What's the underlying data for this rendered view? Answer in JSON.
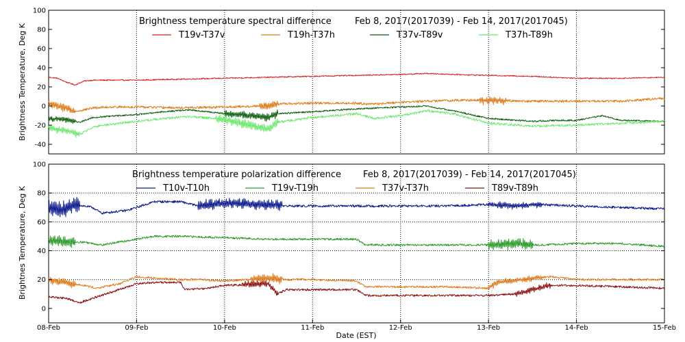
{
  "chart_data": [
    {
      "type": "line",
      "title_left": "Brightness temperature spectral difference",
      "title_right": "Feb  8, 2017(2017039) - Feb 14, 2017(2017045)",
      "ylabel": "Brightness Temperature, Deg K",
      "ylim": [
        -50,
        100
      ],
      "yticks": [
        -40,
        -20,
        0,
        20,
        40,
        60,
        80,
        100
      ],
      "ytick_labels": [
        "-40",
        "-20",
        "0",
        "20",
        "40",
        "60",
        "80",
        "100"
      ],
      "xlim": [
        0,
        7
      ],
      "xgrid": [
        1,
        2,
        3,
        4,
        5,
        6
      ],
      "ygrid": [],
      "series": [
        {
          "name": "T19v-T37v",
          "color": "#d42020",
          "noise": 0.6,
          "x": [
            0,
            0.1,
            0.2,
            0.3,
            0.4,
            0.5,
            0.7,
            1.0,
            1.5,
            2.0,
            2.5,
            3.0,
            3.5,
            4.0,
            4.3,
            4.6,
            5.0,
            5.5,
            6.0,
            6.5,
            7.0
          ],
          "y": [
            30,
            29,
            25,
            22,
            26,
            27,
            27,
            27,
            28,
            29,
            30,
            31,
            32,
            33,
            34,
            33,
            32,
            31,
            29,
            29,
            30
          ],
          "bursts": []
        },
        {
          "name": "T19h-T37h",
          "color": "#e07a18",
          "noise": 1.2,
          "x": [
            0,
            0.1,
            0.2,
            0.3,
            0.5,
            0.7,
            1.0,
            1.5,
            2.0,
            2.5,
            2.6,
            3.0,
            3.5,
            3.7,
            4.0,
            4.3,
            4.6,
            5.0,
            5.5,
            6.0,
            6.5,
            7.0
          ],
          "y": [
            3,
            0,
            -2,
            -6,
            -2,
            -1,
            -1,
            -2,
            -1,
            0,
            2,
            3,
            3,
            2,
            4,
            5,
            6,
            6,
            5,
            5,
            5,
            8
          ],
          "bursts": [
            [
              0,
              0.3,
              4
            ],
            [
              2.4,
              2.6,
              5
            ],
            [
              4.9,
              5.2,
              4
            ]
          ]
        },
        {
          "name": "T37v-T89v",
          "color": "#0e5c0e",
          "noise": 0.8,
          "x": [
            0,
            0.2,
            0.35,
            0.5,
            0.8,
            1.0,
            1.3,
            1.6,
            2.0,
            2.3,
            2.5,
            2.6,
            3.0,
            3.5,
            4.0,
            4.3,
            4.6,
            5.0,
            5.5,
            5.8,
            6.0,
            6.3,
            6.5,
            7.0
          ],
          "y": [
            -13,
            -14,
            -17,
            -12,
            -10,
            -9,
            -6,
            -4,
            -8,
            -10,
            -12,
            -8,
            -6,
            -3,
            -1,
            0,
            -5,
            -13,
            -16,
            -15,
            -15,
            -10,
            -15,
            -16
          ],
          "bursts": [
            [
              0,
              0.3,
              3
            ],
            [
              2.0,
              2.6,
              4
            ]
          ]
        },
        {
          "name": "T37h-T89h",
          "color": "#6fe86f",
          "noise": 1.2,
          "x": [
            0,
            0.2,
            0.35,
            0.5,
            0.8,
            1.0,
            1.3,
            1.6,
            2.0,
            2.3,
            2.5,
            2.6,
            3.0,
            3.5,
            3.7,
            4.0,
            4.3,
            4.6,
            5.0,
            5.5,
            6.0,
            6.5,
            7.0
          ],
          "y": [
            -23,
            -25,
            -30,
            -22,
            -18,
            -16,
            -13,
            -11,
            -14,
            -20,
            -24,
            -17,
            -12,
            -8,
            -13,
            -10,
            -5,
            -8,
            -18,
            -21,
            -20,
            -18,
            -16
          ],
          "bursts": [
            [
              0,
              0.35,
              4
            ],
            [
              1.9,
              2.6,
              5
            ]
          ]
        }
      ]
    },
    {
      "type": "line",
      "title_left": "Brightness temperature polarization difference",
      "title_right": "Feb  8, 2017(2017039) - Feb 14, 2017(2017045)",
      "ylabel": "Brightnes Temperature, Deg K",
      "xlabel": "Date (EST)",
      "ylim": [
        -10,
        100
      ],
      "yticks": [
        0,
        20,
        40,
        60,
        80,
        100
      ],
      "ytick_labels": [
        "0",
        "20",
        "40",
        "60",
        "80",
        "100"
      ],
      "xlim": [
        0,
        7
      ],
      "xticks": [
        0,
        1,
        2,
        3,
        4,
        5,
        6,
        7
      ],
      "xtick_labels": [
        "08-Feb",
        "09-Feb",
        "10-Feb",
        "11-Feb",
        "12-Feb",
        "13-Feb",
        "14-Feb",
        "15-Feb"
      ],
      "xgrid": [
        1,
        2,
        3,
        4,
        5,
        6
      ],
      "ygrid": [
        20,
        40,
        60,
        80
      ],
      "series": [
        {
          "name": "T10v-T10h",
          "color": "#0a1a8c",
          "noise": 0.8,
          "x": [
            0,
            0.15,
            0.3,
            0.5,
            0.6,
            0.9,
            1.0,
            1.2,
            1.5,
            1.7,
            2.0,
            2.5,
            2.7,
            3.0,
            3.5,
            4.0,
            4.5,
            5.0,
            5.3,
            5.6,
            6.0,
            6.5,
            7.0
          ],
          "y": [
            70,
            68,
            72,
            70,
            66,
            68,
            70,
            74,
            74,
            71,
            73,
            72,
            71,
            71,
            71,
            71,
            71,
            72,
            71,
            72,
            71,
            70,
            69
          ],
          "bursts": [
            [
              0,
              0.35,
              6
            ],
            [
              1.7,
              2.65,
              4
            ],
            [
              5.0,
              5.6,
              2
            ]
          ]
        },
        {
          "name": "T19v-T19h",
          "color": "#2a9a2a",
          "noise": 0.7,
          "x": [
            0,
            0.2,
            0.4,
            0.6,
            0.8,
            1.0,
            1.2,
            1.5,
            2.0,
            2.5,
            2.7,
            3.0,
            3.5,
            3.6,
            4.0,
            4.5,
            5.0,
            5.3,
            5.6,
            6.0,
            6.5,
            7.0
          ],
          "y": [
            47,
            46,
            46,
            44,
            46,
            48,
            50,
            50,
            49,
            48,
            48,
            48,
            48,
            44,
            44,
            44,
            44,
            45,
            44,
            45,
            45,
            43
          ],
          "bursts": [
            [
              0,
              0.3,
              4
            ],
            [
              5.0,
              5.5,
              4
            ]
          ]
        },
        {
          "name": "T37v-T37h",
          "color": "#e07a18",
          "noise": 0.7,
          "x": [
            0,
            0.2,
            0.4,
            0.55,
            0.8,
            1.0,
            1.2,
            1.5,
            1.7,
            2.0,
            2.5,
            2.7,
            3.0,
            3.5,
            3.6,
            4.0,
            4.5,
            5.0,
            5.1,
            5.5,
            5.7,
            6.0,
            6.5,
            7.0
          ],
          "y": [
            20,
            18,
            16,
            14,
            17,
            22,
            21,
            20,
            20,
            19,
            21,
            20,
            20,
            19,
            15,
            15,
            15,
            14,
            18,
            21,
            22,
            20,
            20,
            20
          ],
          "bursts": [
            [
              0,
              0.3,
              3
            ],
            [
              2.3,
              2.65,
              3
            ],
            [
              5.0,
              5.6,
              2
            ]
          ]
        },
        {
          "name": "T89v-T89h",
          "color": "#8c1010",
          "noise": 0.7,
          "x": [
            0,
            0.2,
            0.35,
            0.5,
            0.7,
            1.0,
            1.2,
            1.5,
            1.55,
            1.8,
            2.0,
            2.5,
            2.6,
            2.7,
            3.0,
            3.5,
            3.6,
            4.0,
            4.5,
            5.0,
            5.3,
            5.5,
            5.7,
            6.0,
            6.5,
            7.0
          ],
          "y": [
            8,
            7,
            4,
            7,
            11,
            17,
            18,
            18,
            13,
            14,
            16,
            17,
            10,
            13,
            13,
            13,
            9,
            9,
            9,
            9,
            10,
            13,
            16,
            16,
            15,
            14
          ],
          "bursts": [
            [
              2.2,
              2.6,
              2.5
            ],
            [
              5.3,
              5.7,
              2
            ]
          ]
        }
      ]
    }
  ]
}
